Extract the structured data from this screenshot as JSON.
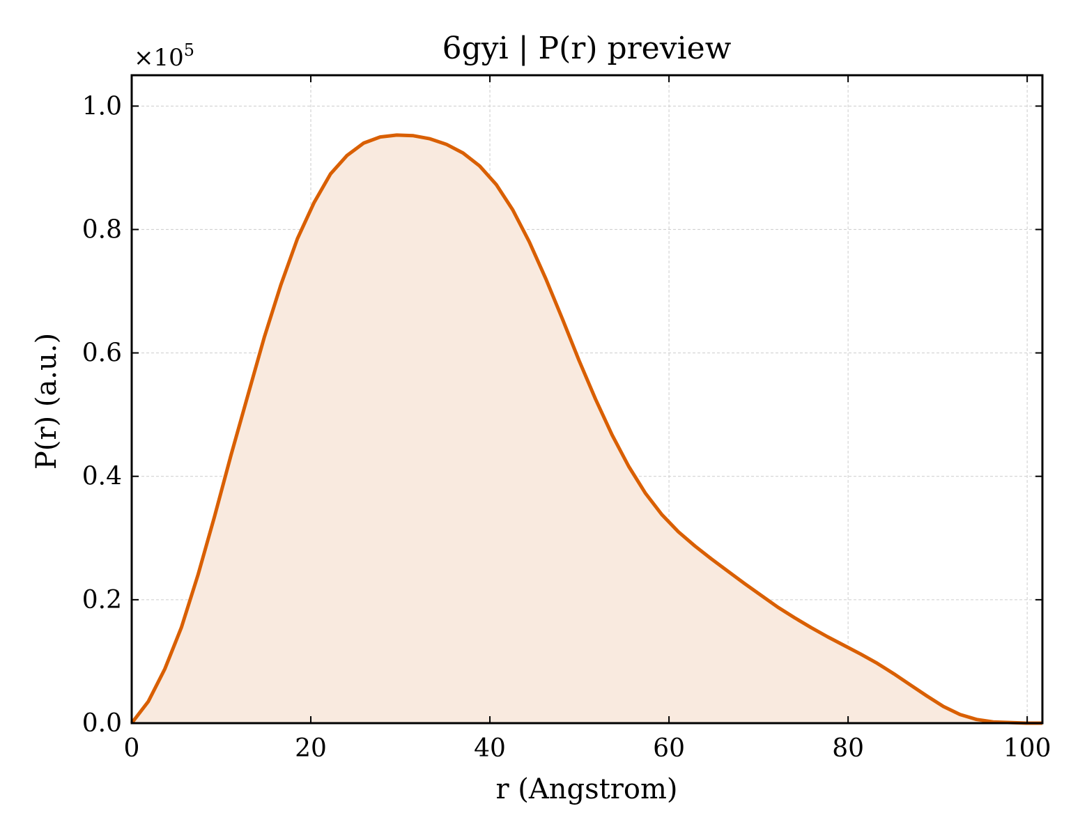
{
  "chart_data": {
    "type": "area",
    "title": "6gyi | P(r) preview",
    "xlabel": "r (Angstrom)",
    "ylabel": "P(r) (a.u.)",
    "y_multiplier_base": "×10",
    "y_multiplier_exp": "5",
    "xlim": [
      0,
      101.7
    ],
    "ylim": [
      0,
      1.05
    ],
    "x_ticks": [
      0,
      20,
      40,
      60,
      80,
      100
    ],
    "x_tick_labels": [
      "0",
      "20",
      "40",
      "60",
      "80",
      "100"
    ],
    "y_ticks": [
      0,
      0.2,
      0.4,
      0.6,
      0.8,
      1.0
    ],
    "y_tick_labels": [
      "0.0",
      "0.2",
      "0.4",
      "0.6",
      "0.8",
      "1.0"
    ],
    "grid": true,
    "line_color": "#d95f02",
    "fill_color": "#f9eadf",
    "series": [
      {
        "x": [
          0,
          1.85,
          3.7,
          5.55,
          7.4,
          9.25,
          11.1,
          12.95,
          14.8,
          16.65,
          18.5,
          20.35,
          22.2,
          24.05,
          25.9,
          27.75,
          29.6,
          31.45,
          33.3,
          35.15,
          37.0,
          38.85,
          40.7,
          42.55,
          44.4,
          46.25,
          48.1,
          49.95,
          51.8,
          53.65,
          55.5,
          57.35,
          59.2,
          61.05,
          62.9,
          64.75,
          66.6,
          68.45,
          70.3,
          72.15,
          74.0,
          75.85,
          77.7,
          79.55,
          81.4,
          83.25,
          85.1,
          86.95,
          88.8,
          90.65,
          92.5,
          94.35,
          96.2,
          98.05,
          99.9,
          101.7
        ],
        "y": [
          0.0,
          0.035,
          0.088,
          0.155,
          0.24,
          0.335,
          0.435,
          0.53,
          0.625,
          0.71,
          0.785,
          0.843,
          0.89,
          0.92,
          0.94,
          0.95,
          0.953,
          0.952,
          0.947,
          0.938,
          0.924,
          0.903,
          0.873,
          0.832,
          0.78,
          0.72,
          0.655,
          0.588,
          0.525,
          0.467,
          0.416,
          0.373,
          0.338,
          0.31,
          0.287,
          0.266,
          0.246,
          0.226,
          0.207,
          0.188,
          0.171,
          0.155,
          0.14,
          0.126,
          0.112,
          0.097,
          0.08,
          0.062,
          0.044,
          0.027,
          0.014,
          0.006,
          0.002,
          0.001,
          0.0,
          0.0
        ]
      }
    ]
  }
}
